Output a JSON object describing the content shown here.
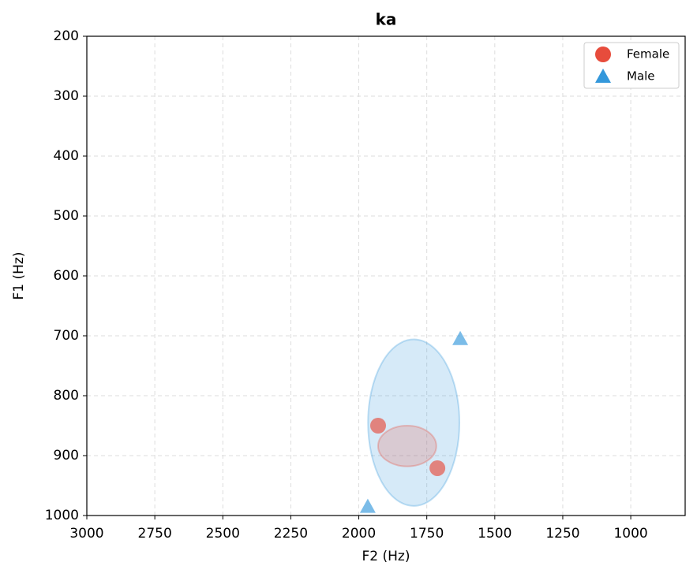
{
  "chart_data": {
    "type": "scatter",
    "title": "ka",
    "xlabel": "F2 (Hz)",
    "ylabel": "F1 (Hz)",
    "xlim": [
      3000,
      800
    ],
    "ylim": [
      1000,
      200
    ],
    "xticks": [
      3000,
      2750,
      2500,
      2250,
      2000,
      1750,
      1500,
      1250,
      1000
    ],
    "yticks": [
      200,
      300,
      400,
      500,
      600,
      700,
      800,
      900,
      1000
    ],
    "grid": true,
    "legend": "upper right",
    "series": [
      {
        "name": "Female",
        "color": "#e74c3c",
        "marker": "circle",
        "x": [
          1929,
          1711
        ],
        "y": [
          850,
          921
        ],
        "ellipse": {
          "cx": 1822,
          "cy": 884,
          "rx": 107,
          "ry": 34
        }
      },
      {
        "name": "Male",
        "color": "#3498db",
        "marker": "triangle",
        "x": [
          1627,
          1967
        ],
        "y": [
          705,
          985
        ],
        "ellipse": {
          "cx": 1798,
          "cy": 845,
          "rx": 168,
          "ry": 139
        }
      }
    ]
  }
}
